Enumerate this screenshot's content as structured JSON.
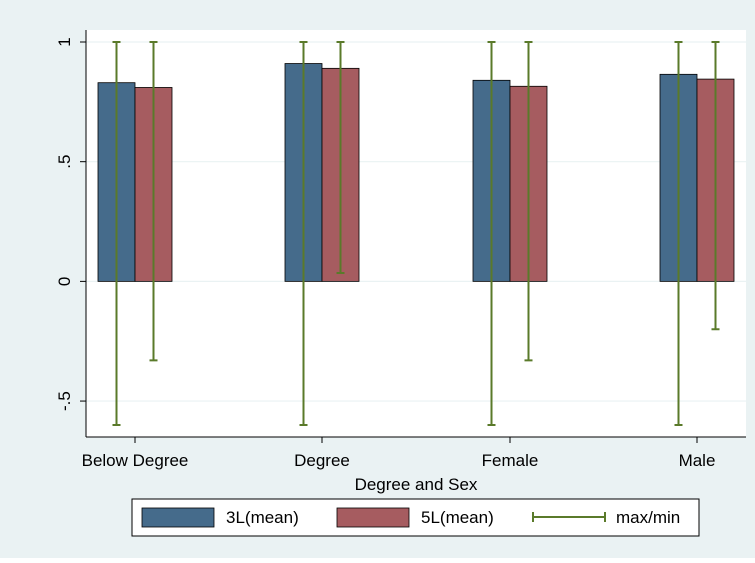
{
  "chart_data": {
    "type": "bar",
    "title": "",
    "xlabel": "Degree and Sex",
    "ylabel": "",
    "ylim": [
      -0.6,
      1
    ],
    "yticks": [
      {
        "value": -0.5,
        "label": "-.5"
      },
      {
        "value": 0,
        "label": "0"
      },
      {
        "value": 0.5,
        "label": ".5"
      },
      {
        "value": 1,
        "label": "1"
      }
    ],
    "categories": [
      "Below Degree",
      "Degree",
      "Female",
      "Male"
    ],
    "series": [
      {
        "name": "3L(mean)",
        "values": [
          0.83,
          0.91,
          0.84,
          0.865
        ],
        "min": [
          -0.6,
          -0.6,
          -0.6,
          -0.6
        ],
        "max": [
          1,
          1,
          1,
          1
        ]
      },
      {
        "name": "5L(mean)",
        "values": [
          0.81,
          0.89,
          0.815,
          0.845
        ],
        "min": [
          -0.33,
          0.035,
          -0.33,
          -0.2
        ],
        "max": [
          1,
          1,
          1,
          1
        ]
      }
    ],
    "range_label": "max/min",
    "legend_position": "bottom",
    "grid": true,
    "colors": {
      "series": [
        "#456b8b",
        "#a65c60"
      ],
      "range": "#5a7a2a",
      "outer_background": "#eaf2f3",
      "plot_background": "#ffffff",
      "grid": "#eaf2f3"
    }
  }
}
